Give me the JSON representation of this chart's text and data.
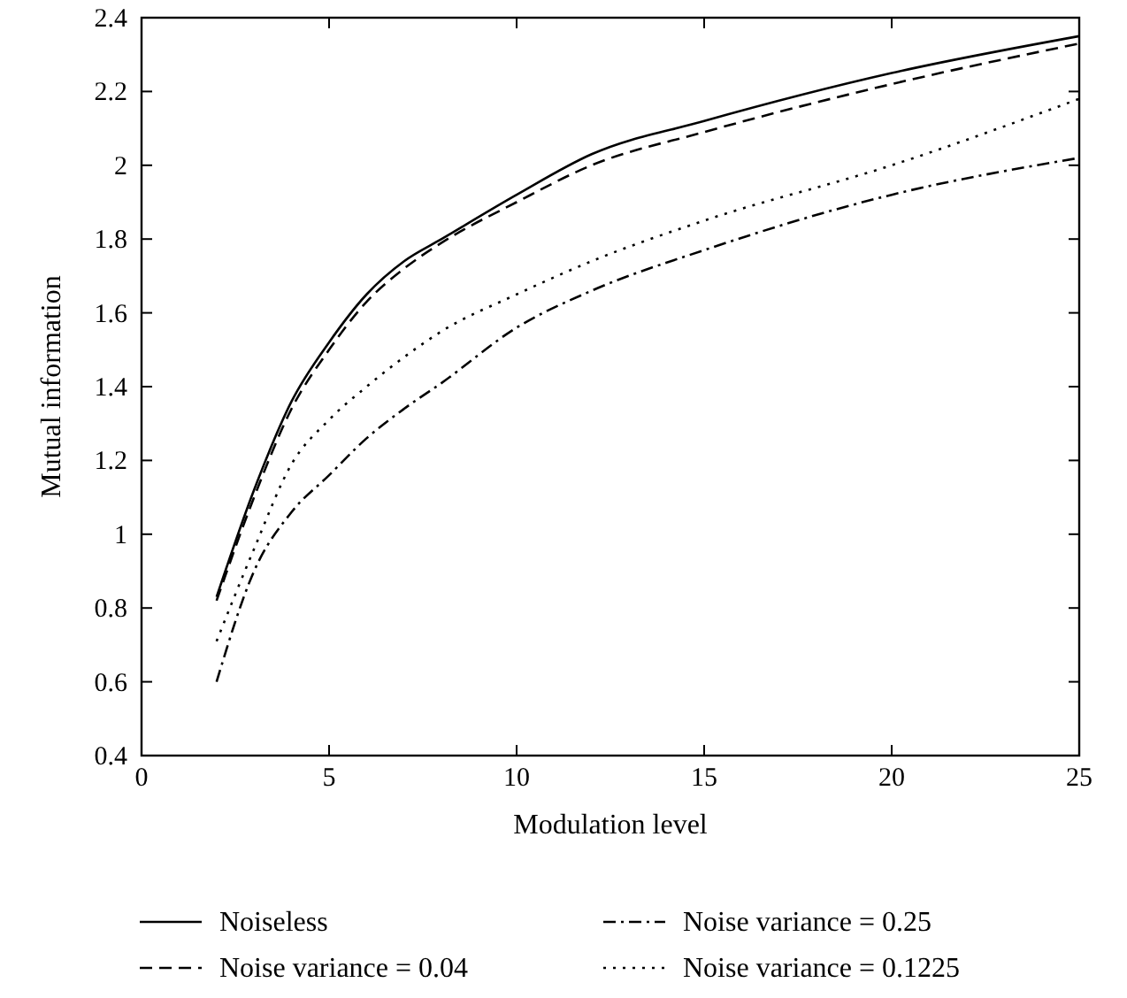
{
  "chart_data": {
    "type": "line",
    "xlabel": "Modulation level",
    "ylabel": "Mutual information",
    "xlim": [
      0,
      25
    ],
    "ylim": [
      0.4,
      2.4
    ],
    "xticks": [
      0,
      5,
      10,
      15,
      20,
      25
    ],
    "yticks": [
      0.4,
      0.6,
      0.8,
      1,
      1.2,
      1.4,
      1.6,
      1.8,
      2,
      2.2,
      2.4
    ],
    "grid": false,
    "legend": "bottom",
    "x": [
      2,
      3,
      4,
      5,
      6,
      7,
      8,
      10,
      12,
      15,
      20,
      25
    ],
    "series": [
      {
        "name": "Noiseless",
        "color": "#000000",
        "line_style": "solid",
        "values": [
          0.83,
          1.12,
          1.36,
          1.52,
          1.65,
          1.74,
          1.8,
          1.92,
          2.03,
          2.12,
          2.25,
          2.35
        ]
      },
      {
        "name": "Noise variance = 0.04",
        "color": "#000000",
        "line_style": "dashed",
        "values": [
          0.82,
          1.1,
          1.34,
          1.5,
          1.63,
          1.72,
          1.79,
          1.9,
          2.0,
          2.09,
          2.22,
          2.33
        ]
      },
      {
        "name": "Noise variance = 0.25",
        "color": "#000000",
        "line_style": "dashdot",
        "values": [
          0.6,
          0.9,
          1.06,
          1.16,
          1.26,
          1.34,
          1.41,
          1.56,
          1.66,
          1.77,
          1.92,
          2.02
        ]
      },
      {
        "name": "Noise variance = 0.1225",
        "color": "#000000",
        "line_style": "dotted",
        "values": [
          0.71,
          0.96,
          1.19,
          1.31,
          1.4,
          1.48,
          1.55,
          1.65,
          1.74,
          1.85,
          2.0,
          2.18
        ]
      }
    ]
  }
}
